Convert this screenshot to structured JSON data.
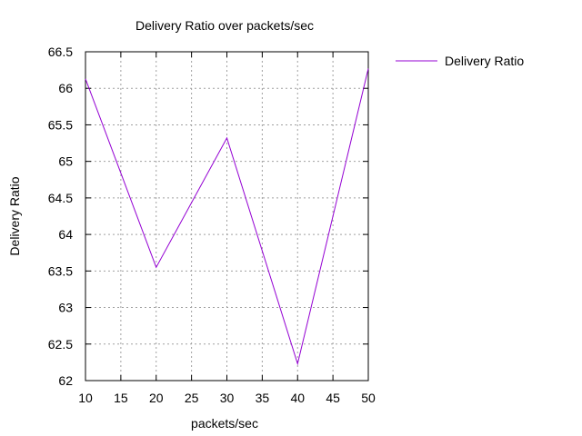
{
  "chart_data": {
    "type": "line",
    "title": "Delivery Ratio over packets/sec",
    "xlabel": "packets/sec",
    "ylabel": "Delivery Ratio",
    "xlim": [
      10,
      50
    ],
    "ylim": [
      62,
      66.5
    ],
    "x_ticks": [
      "10",
      "15",
      "20",
      "25",
      "30",
      "35",
      "40",
      "45",
      "50"
    ],
    "y_ticks": [
      "62",
      "62.5",
      "63",
      "63.5",
      "64",
      "64.5",
      "65",
      "65.5",
      "66",
      "66.5"
    ],
    "grid": true,
    "legend_position": "top-right-outside",
    "series": [
      {
        "name": "Delivery Ratio",
        "color": "#9400d3",
        "x": [
          10,
          20,
          30,
          40,
          50
        ],
        "y": [
          66.13,
          63.55,
          65.32,
          62.23,
          66.27
        ]
      }
    ]
  }
}
